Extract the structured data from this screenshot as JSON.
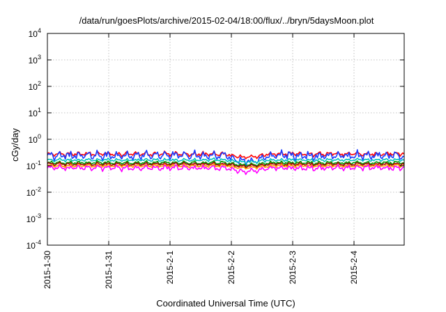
{
  "chart_data": {
    "type": "line",
    "title": "/data/run/goesPlots/archive/2015-02-04/18:00/flux/../bryn/5daysMoon.plot",
    "xlabel": "Coordinated Universal Time (UTC)",
    "ylabel": "cGy/day",
    "yscale": "log",
    "ylim": [
      0.0001,
      10000
    ],
    "xlim": [
      "2015-01-30",
      "2015-02-04T18:00"
    ],
    "x_ticks": [
      "2015-1-30",
      "2015-1-31",
      "2015-2-1",
      "2015-2-2",
      "2015-2-3",
      "2015-2-4"
    ],
    "y_ticks": [
      {
        "base": "10",
        "exp": "-4"
      },
      {
        "base": "10",
        "exp": "-3"
      },
      {
        "base": "10",
        "exp": "-2"
      },
      {
        "base": "10",
        "exp": "-1"
      },
      {
        "base": "10",
        "exp": "0"
      },
      {
        "base": "10",
        "exp": "1"
      },
      {
        "base": "10",
        "exp": "2"
      },
      {
        "base": "10",
        "exp": "3"
      },
      {
        "base": "10",
        "exp": "4"
      }
    ],
    "grid": true,
    "legend": "none",
    "series": [
      {
        "color": "#ff0000",
        "level": 0.28,
        "jitter": 0.06
      },
      {
        "color": "#1a3cff",
        "level": 0.24,
        "jitter": 0.11
      },
      {
        "color": "#00c0c0",
        "level": 0.165,
        "jitter": 0.04
      },
      {
        "color": "#009900",
        "level": 0.13,
        "jitter": 0.04
      },
      {
        "color": "#a00000",
        "level": 0.115,
        "jitter": 0.04
      },
      {
        "color": "#ff9900",
        "level": 0.1,
        "jitter": 0.04
      },
      {
        "color": "#ff00ff",
        "level": 0.083,
        "jitter": 0.07
      }
    ]
  }
}
